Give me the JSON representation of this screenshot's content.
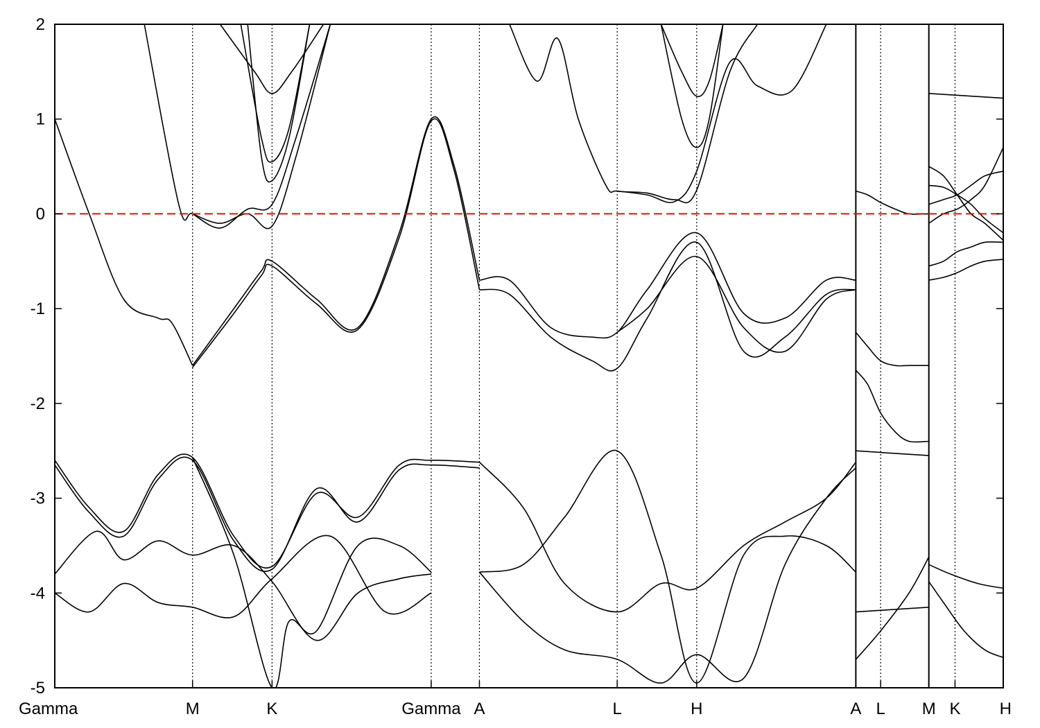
{
  "chart_data": {
    "type": "line",
    "title": "",
    "xlabel": "",
    "ylabel": "",
    "ylim": [
      -5,
      2
    ],
    "yticks": [
      2,
      1,
      0,
      -1,
      -2,
      -3,
      -4,
      -5
    ],
    "ytick_labels": [
      "2",
      "1",
      "0",
      "-1",
      "-2",
      "-3",
      "-4",
      "-5"
    ],
    "grid": false,
    "k_points": [
      {
        "label": "Gamma",
        "x": 0.0
      },
      {
        "label": "M",
        "x": 1.0
      },
      {
        "label": "K",
        "x": 1.577
      },
      {
        "label": "Gamma",
        "x": 2.732
      },
      {
        "label": "A",
        "x": 3.082
      },
      {
        "label": "L",
        "x": 4.082
      },
      {
        "label": "H",
        "x": 4.659
      },
      {
        "label": "A",
        "x": 5.814
      },
      {
        "label": "L",
        "x": 5.994
      },
      {
        "label": "M",
        "x": 6.344
      },
      {
        "label": "K",
        "x": 6.534
      },
      {
        "label": "H",
        "x": 6.884
      }
    ],
    "path_breaks": [
      5.814,
      6.344
    ],
    "fermi_level": 0,
    "series": [
      {
        "x": [
          0.0,
          0.25,
          0.5,
          0.75,
          0.85,
          1.0
        ],
        "y": [
          1.0,
          0.0,
          -0.9,
          -1.1,
          -1.15,
          -1.6
        ]
      },
      {
        "x": [
          1.0,
          1.3,
          1.5,
          1.577,
          1.9,
          2.2,
          2.5,
          2.732,
          2.9,
          3.082
        ],
        "y": [
          -1.6,
          -1.0,
          -0.6,
          -0.5,
          -0.9,
          -1.2,
          -0.2,
          1.0,
          0.5,
          -0.7
        ]
      },
      {
        "x": [
          1.0,
          1.3,
          1.5,
          1.577,
          1.9,
          2.2,
          2.5,
          2.732,
          2.9,
          3.082
        ],
        "y": [
          -1.62,
          -1.05,
          -0.65,
          -0.55,
          -0.95,
          -1.22,
          -0.25,
          0.98,
          0.45,
          -0.8
        ]
      },
      {
        "x": [
          3.082,
          3.3,
          3.6,
          3.9,
          4.082,
          4.3,
          4.659,
          5.0,
          5.3,
          5.6,
          5.814
        ],
        "y": [
          -0.7,
          -0.7,
          -1.2,
          -1.3,
          -1.25,
          -0.8,
          -0.2,
          -1.05,
          -1.1,
          -0.7,
          -0.7
        ]
      },
      {
        "x": [
          3.082,
          3.3,
          3.6,
          3.9,
          4.082,
          4.3,
          4.659,
          5.0,
          5.3,
          5.6,
          5.814
        ],
        "y": [
          -0.8,
          -0.85,
          -1.3,
          -1.55,
          -1.63,
          -1.1,
          -0.3,
          -1.45,
          -1.3,
          -0.85,
          -0.8
        ]
      },
      {
        "x": [
          4.082,
          4.3,
          4.659,
          5.0,
          5.3,
          5.6,
          5.814
        ],
        "y": [
          -1.25,
          -1.0,
          -0.45,
          -1.2,
          -1.45,
          -0.9,
          -0.8
        ]
      },
      {
        "x": [
          0.65,
          0.9,
          1.0,
          1.2,
          1.4,
          1.577,
          1.75,
          2.0
        ],
        "y": [
          2.0,
          0.1,
          0.0,
          -0.15,
          0.05,
          0.1,
          0.8,
          2.0
        ]
      },
      {
        "x": [
          1.0,
          1.2,
          1.4,
          1.577,
          1.75,
          2.0
        ],
        "y": [
          0.0,
          -0.1,
          0.0,
          -0.13,
          0.6,
          2.0
        ]
      },
      {
        "x": [
          1.35,
          1.5,
          1.577,
          1.7,
          1.85
        ],
        "y": [
          2.0,
          0.8,
          0.55,
          0.9,
          2.0
        ]
      },
      {
        "x": [
          1.4,
          1.5,
          1.577,
          1.7,
          1.85
        ],
        "y": [
          2.0,
          0.6,
          0.35,
          0.8,
          2.0
        ]
      },
      {
        "x": [
          1.2,
          1.45,
          1.577,
          1.72,
          1.95
        ],
        "y": [
          2.0,
          1.5,
          1.27,
          1.5,
          2.0
        ]
      },
      {
        "x": [
          3.3,
          3.5,
          3.65,
          3.8,
          4.0,
          4.082,
          4.3,
          4.5,
          4.659,
          4.9,
          5.1
        ],
        "y": [
          2.0,
          1.4,
          1.85,
          1.0,
          0.3,
          0.24,
          0.22,
          0.15,
          0.25,
          1.5,
          2.0
        ]
      },
      {
        "x": [
          4.082,
          4.3,
          4.5,
          4.659,
          4.9,
          5.1,
          5.35,
          5.6
        ],
        "y": [
          0.24,
          0.2,
          0.13,
          0.45,
          1.6,
          1.35,
          1.3,
          2.0
        ]
      },
      {
        "x": [
          4.4,
          4.55,
          4.659,
          4.75,
          4.85
        ],
        "y": [
          2.0,
          1.5,
          1.24,
          1.4,
          2.0
        ]
      },
      {
        "x": [
          4.4,
          4.55,
          4.659,
          4.75,
          4.85
        ],
        "y": [
          2.0,
          1.0,
          0.7,
          1.0,
          2.0
        ]
      },
      {
        "x": [
          0.0,
          0.25,
          0.5,
          0.75,
          1.0,
          1.3,
          1.577,
          1.9,
          2.2,
          2.5,
          2.732,
          3.082
        ],
        "y": [
          -2.6,
          -3.1,
          -3.35,
          -2.75,
          -2.57,
          -3.4,
          -3.72,
          -2.95,
          -3.2,
          -2.65,
          -2.6,
          -2.62
        ]
      },
      {
        "x": [
          0.0,
          0.25,
          0.5,
          0.75,
          1.0,
          1.3,
          1.577,
          1.9,
          2.2,
          2.5,
          2.732,
          3.082
        ],
        "y": [
          -2.65,
          -3.15,
          -3.4,
          -2.8,
          -2.6,
          -3.45,
          -3.75,
          -2.9,
          -3.25,
          -2.7,
          -2.65,
          -2.68
        ]
      },
      {
        "x": [
          0.0,
          0.3,
          0.5,
          0.75,
          1.0,
          1.3,
          1.577,
          1.9,
          2.2,
          2.5,
          2.732
        ],
        "y": [
          -3.8,
          -3.35,
          -3.65,
          -3.45,
          -3.6,
          -3.5,
          -3.88,
          -4.5,
          -4.0,
          -3.85,
          -3.8
        ]
      },
      {
        "x": [
          0.0,
          0.25,
          0.5,
          0.75,
          1.0,
          1.3,
          1.577,
          2.0,
          2.4,
          2.732
        ],
        "y": [
          -4.0,
          -4.2,
          -3.9,
          -4.1,
          -4.15,
          -4.25,
          -3.85,
          -3.4,
          -4.2,
          -4.0
        ]
      },
      {
        "x": [
          1.0,
          1.3,
          1.577,
          1.7,
          1.9,
          2.2,
          2.5,
          2.732
        ],
        "y": [
          -2.57,
          -3.6,
          -5.0,
          -4.3,
          -4.4,
          -3.5,
          -3.5,
          -3.78
        ]
      },
      {
        "x": [
          3.082,
          3.4,
          3.7,
          4.082,
          4.4,
          4.659,
          5.0,
          5.3,
          5.6,
          5.814
        ],
        "y": [
          -2.62,
          -3.1,
          -3.9,
          -4.2,
          -3.9,
          -3.95,
          -3.5,
          -3.25,
          -3.0,
          -2.62
        ]
      },
      {
        "x": [
          3.082,
          3.4,
          3.7,
          4.082,
          4.4,
          4.659,
          5.0,
          5.3,
          5.6,
          5.814
        ],
        "y": [
          -3.78,
          -3.7,
          -3.2,
          -2.5,
          -3.6,
          -4.95,
          -3.6,
          -3.4,
          -3.5,
          -3.78
        ]
      },
      {
        "x": [
          3.082,
          3.4,
          3.7,
          4.082,
          4.4,
          4.659,
          5.0,
          5.3,
          5.6,
          5.814
        ],
        "y": [
          -3.78,
          -4.3,
          -4.6,
          -4.7,
          -4.95,
          -4.65,
          -4.9,
          -3.7,
          -3.0,
          -2.68
        ]
      },
      {
        "x": [
          5.814,
          5.9,
          5.994,
          6.1,
          6.2,
          6.344
        ],
        "y": [
          0.24,
          0.2,
          0.12,
          0.05,
          0.0,
          0.0
        ]
      },
      {
        "x": [
          5.814,
          5.9,
          5.994,
          6.1,
          6.2,
          6.344
        ],
        "y": [
          -1.25,
          -1.4,
          -1.55,
          -1.6,
          -1.6,
          -1.6
        ]
      },
      {
        "x": [
          5.814,
          5.9,
          5.994,
          6.1,
          6.2,
          6.344
        ],
        "y": [
          -1.65,
          -1.8,
          -2.1,
          -2.3,
          -2.4,
          -2.4
        ]
      },
      {
        "x": [
          5.814,
          6.344
        ],
        "y": [
          -2.5,
          -2.55
        ]
      },
      {
        "x": [
          5.814,
          6.344
        ],
        "y": [
          -4.2,
          -4.15
        ]
      },
      {
        "x": [
          5.814,
          5.994,
          6.2,
          6.344
        ],
        "y": [
          -4.7,
          -4.4,
          -4.0,
          -3.62
        ]
      },
      {
        "x": [
          6.344,
          6.884
        ],
        "y": [
          1.27,
          1.22
        ]
      },
      {
        "x": [
          6.344,
          6.45,
          6.55,
          6.65,
          6.75,
          6.884
        ],
        "y": [
          0.5,
          0.4,
          0.2,
          0.0,
          -0.1,
          -0.28
        ]
      },
      {
        "x": [
          6.344,
          6.45,
          6.55,
          6.65,
          6.75,
          6.884
        ],
        "y": [
          0.3,
          0.28,
          0.2,
          0.1,
          -0.05,
          -0.2
        ]
      },
      {
        "x": [
          6.344,
          6.45,
          6.55,
          6.65,
          6.75,
          6.884
        ],
        "y": [
          0.1,
          0.15,
          0.2,
          0.3,
          0.4,
          0.45
        ]
      },
      {
        "x": [
          6.344,
          6.45,
          6.55,
          6.65,
          6.75,
          6.884
        ],
        "y": [
          -0.1,
          0.0,
          0.05,
          0.15,
          0.3,
          0.7
        ]
      },
      {
        "x": [
          6.344,
          6.45,
          6.55,
          6.65,
          6.75,
          6.884
        ],
        "y": [
          -0.55,
          -0.5,
          -0.4,
          -0.35,
          -0.3,
          -0.3
        ]
      },
      {
        "x": [
          6.344,
          6.45,
          6.55,
          6.65,
          6.75,
          6.884
        ],
        "y": [
          -0.7,
          -0.67,
          -0.62,
          -0.55,
          -0.5,
          -0.48
        ]
      },
      {
        "x": [
          6.344,
          6.5,
          6.7,
          6.884
        ],
        "y": [
          -3.7,
          -3.8,
          -3.9,
          -3.95
        ]
      },
      {
        "x": [
          6.344,
          6.45,
          6.6,
          6.75,
          6.884
        ],
        "y": [
          -3.88,
          -4.1,
          -4.4,
          -4.6,
          -4.68
        ]
      }
    ]
  }
}
